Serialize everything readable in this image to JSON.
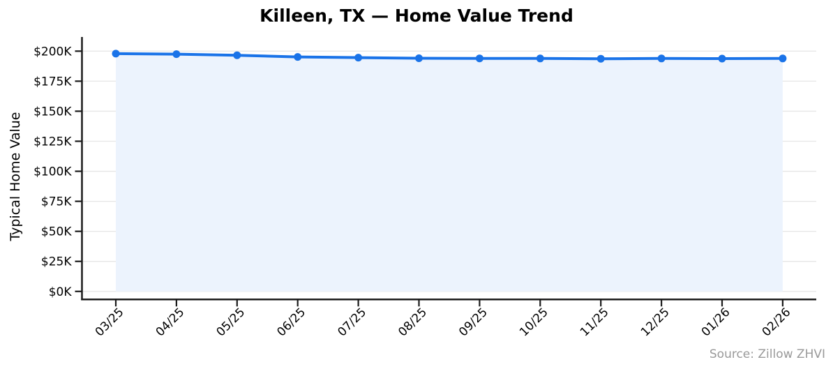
{
  "chart_data": {
    "type": "line",
    "title": "Killeen, TX — Home Value Trend",
    "xlabel": "",
    "ylabel": "Typical Home Value",
    "source": "Source: Zillow ZHVI",
    "x": [
      "03/25",
      "04/25",
      "05/25",
      "06/25",
      "07/25",
      "08/25",
      "09/25",
      "10/25",
      "11/25",
      "12/25",
      "01/26",
      "02/26"
    ],
    "series": [
      {
        "name": "Typical Home Value (ZHVI)",
        "values": [
          197900,
          197500,
          196600,
          195200,
          194600,
          194100,
          194000,
          193900,
          193700,
          193900,
          193800,
          193900
        ]
      }
    ],
    "unit": "USD",
    "y_ticks": {
      "values": [
        0,
        25000,
        50000,
        75000,
        100000,
        125000,
        150000,
        175000,
        200000
      ],
      "labels": [
        "$0K",
        "$25K",
        "$50K",
        "$75K",
        "$100K",
        "$125K",
        "$150K",
        "$175K",
        "$200K"
      ]
    },
    "ylim": [
      -6700,
      211800
    ],
    "grid": "horizontal",
    "legend": "none",
    "marker": "circle",
    "fill_to_zero": true,
    "colors": {
      "line": "#1a73e8",
      "fill": "#ecf3fd",
      "grid": "#e6e6e6",
      "axis": "#1a1a1a",
      "text": "#000000",
      "muted": "#999999",
      "background": "#ffffff"
    }
  }
}
